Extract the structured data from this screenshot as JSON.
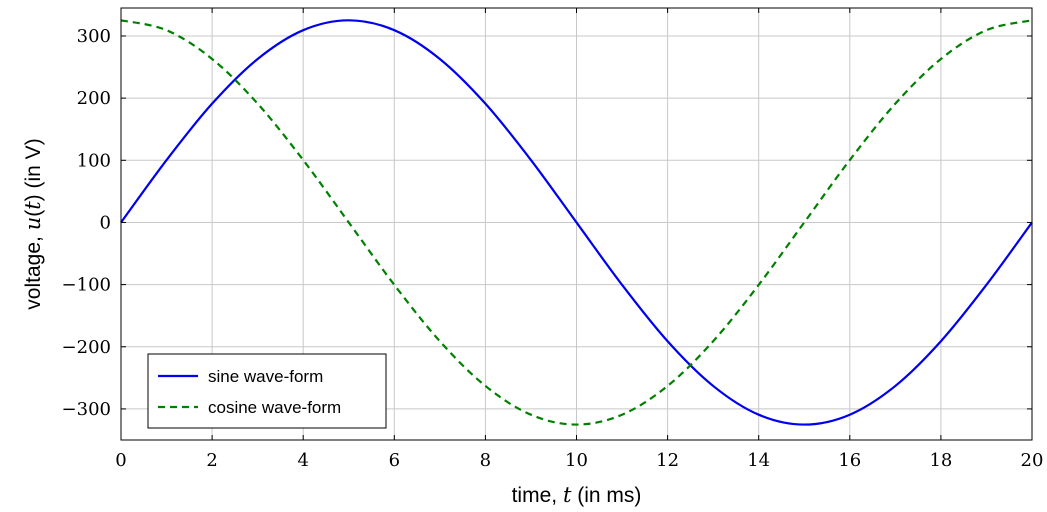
{
  "chart_data": {
    "type": "line",
    "xlabel": {
      "pre": "time, ",
      "var": "t",
      "post": " (in ms)"
    },
    "ylabel": {
      "pre": "voltage, ",
      "var": "u",
      "mid": "(",
      "var2": "t",
      "post": ") (in V)"
    },
    "xlim": [
      0,
      20
    ],
    "ylim": [
      -350,
      345
    ],
    "xticks": [
      0,
      2,
      4,
      6,
      8,
      10,
      12,
      14,
      16,
      18,
      20
    ],
    "yticks": [
      -300,
      -200,
      -100,
      0,
      100,
      200,
      300
    ],
    "ytick_labels": [
      "−300",
      "−200",
      "−100",
      "0",
      "100",
      "200",
      "300"
    ],
    "grid": true,
    "legend_position": "bottom-left",
    "x": [
      0,
      1,
      2,
      3,
      4,
      5,
      6,
      7,
      8,
      9,
      10,
      11,
      12,
      13,
      14,
      15,
      16,
      17,
      18,
      19,
      20
    ],
    "series": [
      {
        "name": "sine wave-form",
        "color": "#0000ee",
        "style": "solid",
        "values": [
          0,
          100.4,
          191.1,
          263.0,
          309.3,
          325.2,
          309.3,
          263.0,
          191.1,
          100.4,
          0,
          -100.4,
          -191.1,
          -263.0,
          -309.3,
          -325.2,
          -309.3,
          -263.0,
          -191.1,
          -100.4,
          0
        ]
      },
      {
        "name": "cosine wave-form",
        "color": "#008000",
        "style": "dashed",
        "values": [
          325.2,
          309.3,
          263.0,
          191.1,
          100.4,
          0,
          -100.4,
          -191.1,
          -263.0,
          -309.3,
          -325.2,
          -309.3,
          -263.0,
          -191.1,
          -100.4,
          0,
          100.4,
          191.1,
          263.0,
          309.3,
          325.2
        ]
      }
    ]
  }
}
